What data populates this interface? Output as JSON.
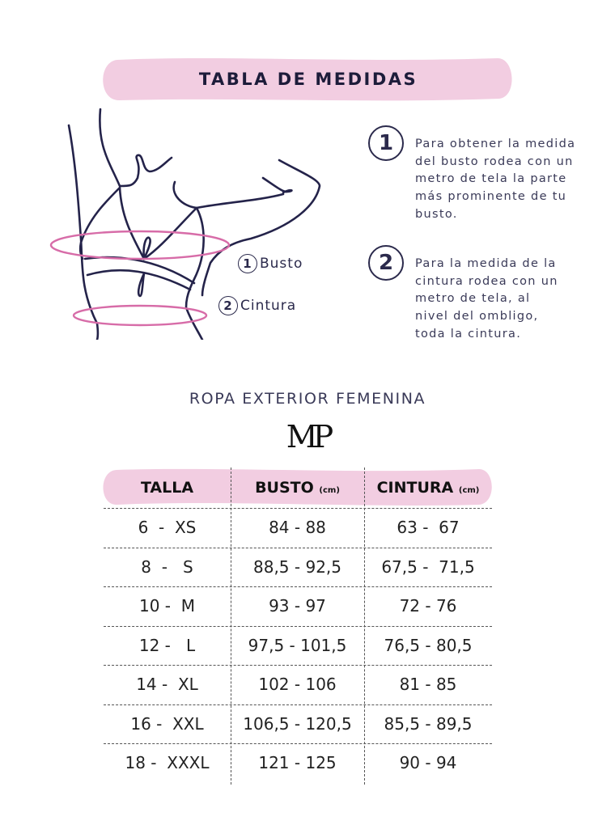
{
  "title": "TABLA DE MEDIDAS",
  "steps": [
    {
      "num": "1",
      "text": "Para obtener la medida del busto rodea con un metro de tela la parte más prominente de tu busto."
    },
    {
      "num": "2",
      "text": "Para la medida de la cintura rodea con un metro de tela, al nivel del ombligo, toda la cintura."
    }
  ],
  "figure_labels": [
    {
      "num": "1",
      "label": "Busto"
    },
    {
      "num": "2",
      "label": "Cintura"
    }
  ],
  "subtitle": "ROPA EXTERIOR FEMENINA",
  "logo": "MP",
  "table": {
    "headers": [
      {
        "label": "TALLA",
        "unit": ""
      },
      {
        "label": "BUSTO",
        "unit": "(cm)"
      },
      {
        "label": "CINTURA",
        "unit": "(cm)"
      }
    ],
    "rows": [
      [
        "6  -  XS",
        "84 - 88",
        "63 -  67"
      ],
      [
        "8  -   S",
        "88,5 - 92,5",
        "67,5 -  71,5"
      ],
      [
        "10 -  M",
        "93 - 97",
        "72 - 76"
      ],
      [
        "12 -   L",
        "97,5 - 101,5",
        "76,5 - 80,5"
      ],
      [
        "14 -  XL",
        "102 - 106",
        "81 - 85"
      ],
      [
        "16 -  XXL",
        "106,5 - 120,5",
        "85,5 - 89,5"
      ],
      [
        "18 -  XXXL",
        "121 - 125",
        "90 - 94"
      ]
    ]
  },
  "colors": {
    "pink": "#f2cde1",
    "navy": "#2b2a4c",
    "ring": "#d76ca8"
  }
}
